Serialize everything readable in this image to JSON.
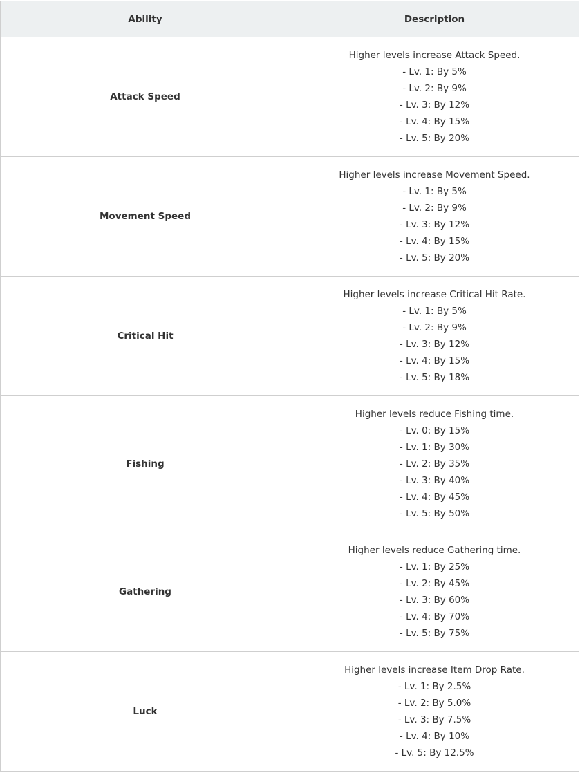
{
  "table": {
    "headers": [
      "Ability",
      "Description"
    ],
    "rows": [
      {
        "ability": "Attack Speed",
        "summary": "Higher levels increase Attack Speed.",
        "levels": [
          "- Lv. 1: By 5%",
          "- Lv. 2: By 9%",
          "- Lv. 3: By 12%",
          "- Lv. 4: By 15%",
          "- Lv. 5: By 20%"
        ]
      },
      {
        "ability": "Movement Speed",
        "summary": "Higher levels increase Movement Speed.",
        "levels": [
          "- Lv. 1: By 5%",
          "- Lv. 2: By 9%",
          "- Lv. 3: By 12%",
          "- Lv. 4: By 15%",
          "- Lv. 5: By 20%"
        ]
      },
      {
        "ability": "Critical Hit",
        "summary": "Higher levels increase Critical Hit Rate.",
        "levels": [
          "- Lv. 1: By 5%",
          "- Lv. 2: By 9%",
          "- Lv. 3: By 12%",
          "- Lv. 4: By 15%",
          "- Lv. 5: By 18%"
        ]
      },
      {
        "ability": "Fishing",
        "summary": "Higher levels reduce Fishing time.",
        "levels": [
          "- Lv. 0: By 15%",
          "- Lv. 1: By 30%",
          "- Lv. 2: By 35%",
          "- Lv. 3: By 40%",
          "- Lv. 4: By 45%",
          "- Lv. 5: By 50%"
        ]
      },
      {
        "ability": "Gathering",
        "summary": "Higher levels reduce Gathering time.",
        "levels": [
          "- Lv. 1: By 25%",
          "- Lv. 2: By 45%",
          "- Lv. 3: By 60%",
          "- Lv. 4: By 70%",
          "- Lv. 5: By 75%"
        ]
      },
      {
        "ability": "Luck",
        "summary": "Higher levels increase Item Drop Rate.",
        "levels": [
          "- Lv. 1: By 2.5%",
          "- Lv. 2: By 5.0%",
          "- Lv. 3: By 7.5%",
          "- Lv. 4: By 10%",
          "- Lv. 5: By 12.5%"
        ]
      }
    ]
  }
}
